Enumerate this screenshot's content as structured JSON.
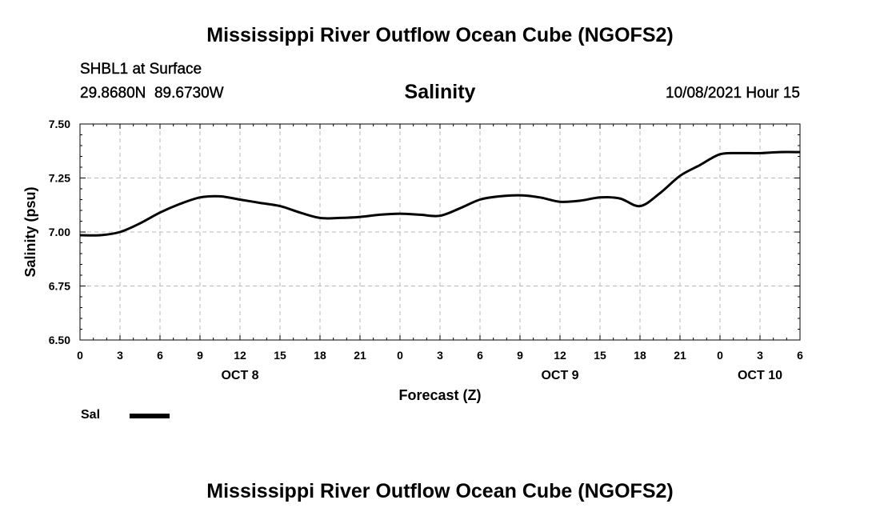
{
  "header": {
    "title": "Mississippi River Outflow Ocean Cube (NGOFS2)",
    "station": "SHBL1 at Surface",
    "coords": "29.8680N  89.6730W",
    "variable": "Salinity",
    "datetime": "10/08/2021 Hour 15"
  },
  "footer": {
    "title": "Mississippi River Outflow Ocean Cube (NGOFS2)"
  },
  "legend": {
    "label": "Sal"
  },
  "chart_data": {
    "type": "line",
    "title": "Salinity",
    "xlabel": "Forecast (Z)",
    "ylabel": "Salinity (psu)",
    "xlim": [
      0,
      54
    ],
    "ylim": [
      6.5,
      7.5
    ],
    "x_ticks": [
      0,
      3,
      6,
      9,
      12,
      15,
      18,
      21,
      24,
      27,
      30,
      33,
      36,
      39,
      42,
      45,
      48,
      51,
      54
    ],
    "x_tick_labels": [
      "0",
      "3",
      "6",
      "9",
      "12",
      "15",
      "18",
      "21",
      "0",
      "3",
      "6",
      "9",
      "12",
      "15",
      "18",
      "21",
      "0",
      "3",
      "6"
    ],
    "y_ticks": [
      6.5,
      6.75,
      7.0,
      7.25,
      7.5
    ],
    "y_tick_labels": [
      "6.50",
      "6.75",
      "7.00",
      "7.25",
      "7.50"
    ],
    "date_labels": [
      {
        "label": "OCT 8",
        "x": 12
      },
      {
        "label": "OCT 9",
        "x": 36
      },
      {
        "label": "OCT 10",
        "x": 51
      }
    ],
    "grid": true,
    "series": [
      {
        "name": "Sal",
        "color": "#000000",
        "x": [
          0,
          1.5,
          3,
          4.5,
          6,
          7.5,
          9,
          10.5,
          12,
          13.5,
          15,
          16.5,
          18,
          19.5,
          21,
          22.5,
          24,
          25.5,
          27,
          28.5,
          30,
          31.5,
          33,
          34.5,
          36,
          37.5,
          39,
          40.5,
          42,
          43.5,
          45,
          46.5,
          48,
          49.5,
          51,
          52.5,
          54
        ],
        "values": [
          6.985,
          6.985,
          7.0,
          7.04,
          7.09,
          7.13,
          7.16,
          7.165,
          7.15,
          7.135,
          7.12,
          7.09,
          7.065,
          7.065,
          7.07,
          7.08,
          7.085,
          7.08,
          7.075,
          7.11,
          7.15,
          7.165,
          7.17,
          7.16,
          7.14,
          7.145,
          7.16,
          7.155,
          7.12,
          7.18,
          7.26,
          7.31,
          7.36,
          7.365,
          7.365,
          7.37,
          7.37
        ]
      }
    ]
  }
}
